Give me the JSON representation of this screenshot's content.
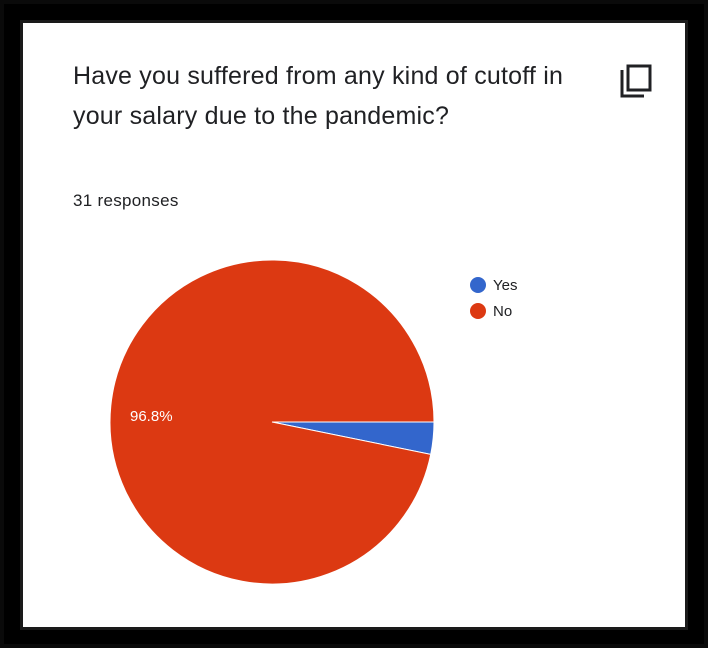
{
  "card": {
    "question": "Have you suffered from any kind of cutoff in your salary due to the pandemic?",
    "responses_text": "31 responses",
    "copy_icon": "copy-icon"
  },
  "colors": {
    "yes": "#3366cc",
    "no": "#dc3912",
    "background": "#ffffff",
    "frame": "#000000"
  },
  "chart_data": {
    "type": "pie",
    "labels": [
      "Yes",
      "No"
    ],
    "values": [
      3.2,
      96.8
    ],
    "slice_labels": [
      "",
      "96.8%"
    ],
    "legend_position": "top-right"
  }
}
